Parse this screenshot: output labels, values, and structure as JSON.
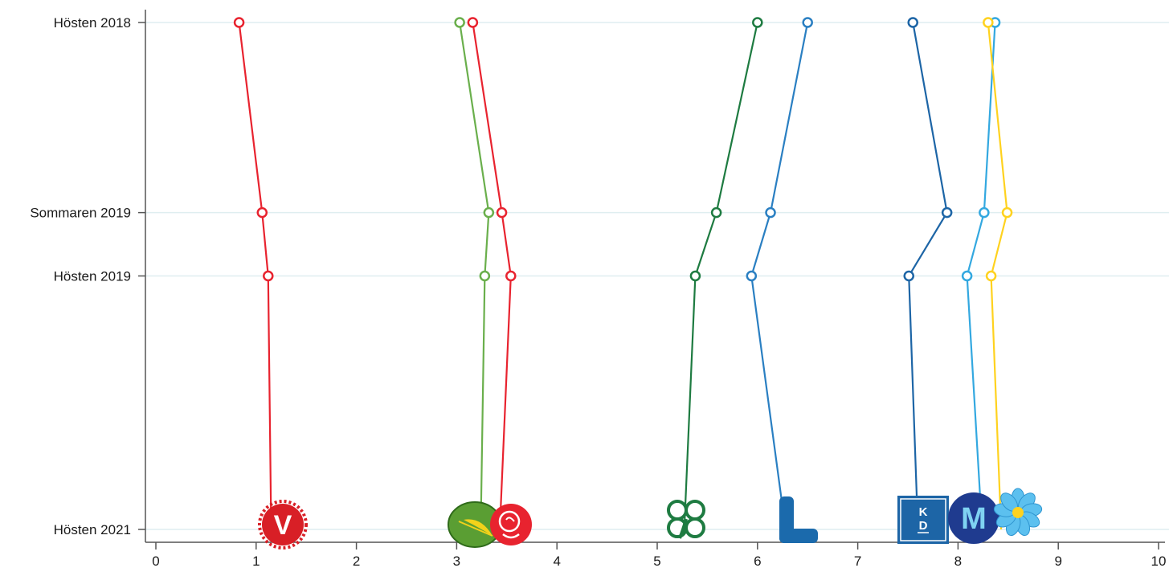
{
  "chart_data": {
    "type": "line",
    "orientation": "horizontal-time",
    "y_categories": [
      "Hösten 2018",
      "Sommaren 2019",
      "Hösten 2019",
      "Hösten 2021"
    ],
    "y_positions": [
      0,
      0.75,
      1.0,
      2.0
    ],
    "xlim": [
      0,
      10
    ],
    "x_ticks": [
      "0",
      "1",
      "2",
      "3",
      "4",
      "5",
      "6",
      "7",
      "8",
      "9",
      "10"
    ],
    "grid": "horizontal",
    "series": [
      {
        "color": "#e8232f",
        "logo": "v-logo-icon",
        "values": [
          0.83,
          1.06,
          1.12,
          1.15
        ]
      },
      {
        "color": "#6aaf4c",
        "logo": "mp-logo-icon",
        "values": [
          3.03,
          3.32,
          3.28,
          3.24
        ]
      },
      {
        "color": "#e8232f",
        "logo": "s-logo-icon",
        "values": [
          3.16,
          3.45,
          3.54,
          3.43
        ]
      },
      {
        "color": "#1e7b41",
        "logo": "c-logo-icon",
        "values": [
          6.0,
          5.59,
          5.38,
          5.27
        ]
      },
      {
        "color": "#2a7fc2",
        "logo": "l-logo-icon",
        "values": [
          6.5,
          6.13,
          5.94,
          6.28
        ]
      },
      {
        "color": "#1d65a6",
        "logo": "kd-logo-icon",
        "values": [
          7.55,
          7.89,
          7.51,
          7.6
        ]
      },
      {
        "color": "#33a8e0",
        "logo": "m-logo-icon",
        "values": [
          8.37,
          8.26,
          8.09,
          8.24
        ]
      },
      {
        "color": "#ffd21f",
        "logo": "sd-logo-icon",
        "values": [
          8.3,
          8.49,
          8.33,
          8.43
        ]
      }
    ],
    "logos": {
      "v_text": "V",
      "kd_top": "K",
      "kd_bottom": "D",
      "m_text": "M"
    }
  }
}
